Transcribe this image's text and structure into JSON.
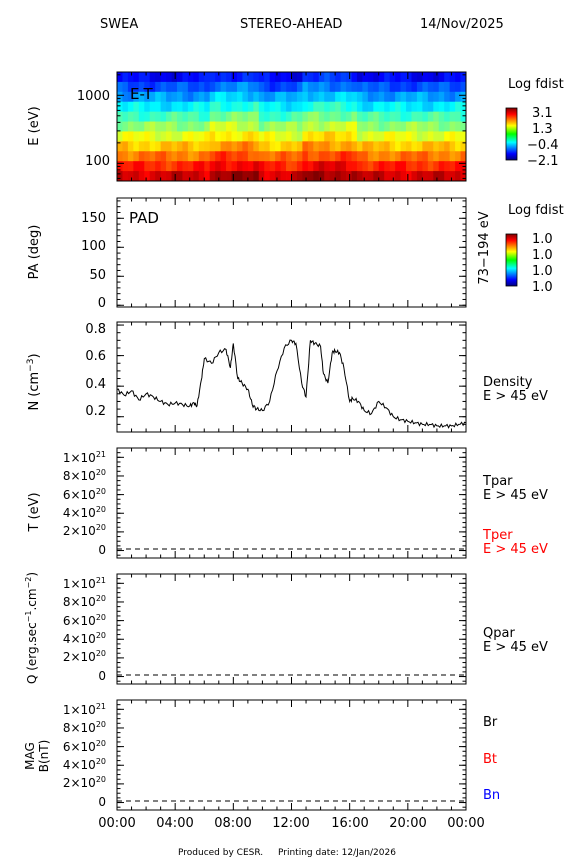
{
  "header": {
    "instrument": "SWEA",
    "spacecraft": "STEREO-AHEAD",
    "date": "14/Nov/2025"
  },
  "footer": {
    "produced": "Produced by CESR.",
    "printing": "Printing date: 12/Jan/2026"
  },
  "colors": {
    "red": "#ff0000",
    "blue": "#0000ff",
    "black": "#000000"
  },
  "chart_data": [
    {
      "type": "heatmap",
      "panel": "E-T",
      "label": "E-T",
      "ylabel": "E (eV)",
      "yscale": "log",
      "ylim": [
        55,
        2200
      ],
      "yticks": [
        "100",
        "1000"
      ],
      "energy_bands_eV": [
        2000,
        1600,
        1150,
        800,
        560,
        400,
        280,
        195,
        135,
        95,
        68
      ],
      "colorbar": {
        "title": "Log fdist",
        "ticks": [
          "3.1",
          "1.3",
          "−0.4",
          "−2.1"
        ]
      }
    },
    {
      "type": "heatmap",
      "panel": "PAD",
      "label": "PAD",
      "ylabel": "PA (deg)",
      "ylim": [
        0,
        180
      ],
      "yticks": [
        "0",
        "50",
        "100",
        "150"
      ],
      "right_label": "73−194 eV",
      "colorbar": {
        "title": "Log fdist",
        "ticks": [
          "1.0",
          "1.0",
          "1.0",
          "1.0"
        ]
      }
    },
    {
      "type": "line",
      "panel": "density",
      "ylabel_main": "N (cm",
      "ylabel_sup": "−3",
      "ylabel_end": ")",
      "ylim": [
        0.1,
        0.82
      ],
      "yticks": [
        "0.2",
        "0.4",
        "0.6",
        "0.8"
      ],
      "legend": [
        "Density",
        "E > 45 eV"
      ],
      "x": [
        0,
        0.5,
        1,
        1.5,
        2,
        2.5,
        3,
        3.5,
        4,
        4.5,
        5,
        5.3,
        5.5,
        5.8,
        6,
        6.5,
        7,
        7.5,
        7.8,
        8,
        8.3,
        8.6,
        9,
        9.3,
        9.6,
        10,
        10.5,
        11,
        11.5,
        12,
        12.3,
        12.7,
        13,
        13.3,
        13.6,
        14,
        14.2,
        14.5,
        14.8,
        15,
        15.3,
        15.6,
        16,
        16.2,
        16.6,
        17,
        17.5,
        18,
        18.5,
        19,
        19.5,
        20,
        20.5,
        21,
        21.5,
        22,
        22.5,
        23,
        23.5,
        24
      ],
      "y": [
        0.38,
        0.34,
        0.37,
        0.31,
        0.35,
        0.33,
        0.3,
        0.28,
        0.29,
        0.28,
        0.27,
        0.29,
        0.27,
        0.44,
        0.58,
        0.55,
        0.62,
        0.64,
        0.52,
        0.68,
        0.45,
        0.42,
        0.38,
        0.28,
        0.25,
        0.24,
        0.3,
        0.5,
        0.65,
        0.7,
        0.68,
        0.42,
        0.33,
        0.7,
        0.68,
        0.66,
        0.48,
        0.42,
        0.62,
        0.63,
        0.62,
        0.52,
        0.3,
        0.32,
        0.3,
        0.24,
        0.22,
        0.3,
        0.26,
        0.2,
        0.18,
        0.17,
        0.16,
        0.15,
        0.15,
        0.14,
        0.14,
        0.14,
        0.15,
        0.16
      ]
    },
    {
      "type": "line",
      "panel": "temperature",
      "ylabel": "T (eV)",
      "ylim": [
        -0.08,
        1.1
      ],
      "yticks": [
        {
          "base": "0",
          "exp": ""
        },
        {
          "base": "2×10",
          "exp": "20"
        },
        {
          "base": "4×10",
          "exp": "20"
        },
        {
          "base": "6×10",
          "exp": "20"
        },
        {
          "base": "8×10",
          "exp": "20"
        },
        {
          "base": "1×10",
          "exp": "21"
        }
      ],
      "legend_black": [
        "Tpar",
        "E > 45 eV"
      ],
      "legend_red": [
        "Tper",
        "E > 45 eV"
      ],
      "zero_line": "dashed"
    },
    {
      "type": "line",
      "panel": "heatflux",
      "ylabel_main": "Q (erg.sec",
      "ylabel_sup1": "−1",
      "ylabel_mid": ".cm",
      "ylabel_sup2": "−2",
      "ylabel_end": ")",
      "ylim": [
        -0.08,
        1.1
      ],
      "yticks": [
        {
          "base": "0",
          "exp": ""
        },
        {
          "base": "2×10",
          "exp": "20"
        },
        {
          "base": "4×10",
          "exp": "20"
        },
        {
          "base": "6×10",
          "exp": "20"
        },
        {
          "base": "8×10",
          "exp": "20"
        },
        {
          "base": "1×10",
          "exp": "21"
        }
      ],
      "legend": [
        "Qpar",
        "E > 45 eV"
      ],
      "zero_line": "dashed"
    },
    {
      "type": "line",
      "panel": "magnetic",
      "ylabel_top": "MAG",
      "ylabel": "B(nT)",
      "ylim": [
        -0.08,
        1.1
      ],
      "yticks": [
        {
          "base": "0",
          "exp": ""
        },
        {
          "base": "2×10",
          "exp": "20"
        },
        {
          "base": "4×10",
          "exp": "20"
        },
        {
          "base": "6×10",
          "exp": "20"
        },
        {
          "base": "8×10",
          "exp": "20"
        },
        {
          "base": "1×10",
          "exp": "21"
        }
      ],
      "legend": [
        {
          "name": "Br",
          "color": "#000000"
        },
        {
          "name": "Bt",
          "color": "#ff0000"
        },
        {
          "name": "Bn",
          "color": "#0000ff"
        }
      ],
      "xticks": [
        "00:00",
        "04:00",
        "08:00",
        "12:00",
        "16:00",
        "20:00",
        "00:00"
      ],
      "zero_line": "dashed"
    }
  ]
}
